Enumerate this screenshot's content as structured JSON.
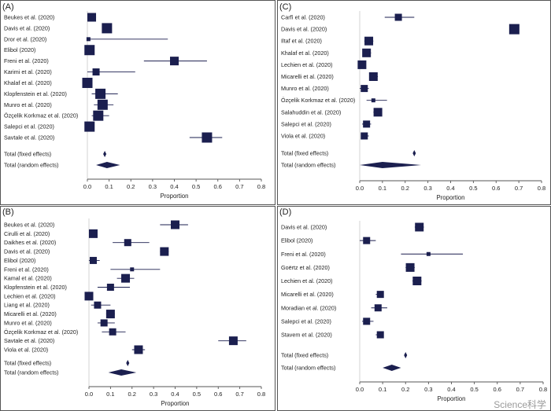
{
  "colors": {
    "marker": "#1b1f4f",
    "axis": "#555555",
    "zero_line": "#c8c8c8",
    "text": "#222222"
  },
  "watermark": "Science科学",
  "chart_data": [
    {
      "type": "forest",
      "panel": "(A)",
      "xlabel": "Proportion",
      "xlim": [
        0,
        0.8
      ],
      "xticks": [
        "0.0",
        "0.1",
        "0.2",
        "0.3",
        "0.4",
        "0.5",
        "0.6",
        "0.7",
        "0.8"
      ],
      "studies": [
        {
          "label": "Beukes et al. (2020)",
          "estimate": 0.02,
          "ci": [
            0.0,
            0.04
          ],
          "weight": "medium"
        },
        {
          "label": "Davis et al. (2020)",
          "estimate": 0.09,
          "ci": [
            0.07,
            0.11
          ],
          "weight": "large"
        },
        {
          "label": "Dror et al. (2020)",
          "estimate": 0.005,
          "ci": [
            0.0,
            0.37
          ],
          "weight": "tiny"
        },
        {
          "label": "Elibol (2020)",
          "estimate": 0.01,
          "ci": [
            0.0,
            0.03
          ],
          "weight": "large"
        },
        {
          "label": "Freni et al. (2020)",
          "estimate": 0.4,
          "ci": [
            0.26,
            0.55
          ],
          "weight": "medium"
        },
        {
          "label": "Karimi et al. (2020)",
          "estimate": 0.04,
          "ci": [
            0.0,
            0.22
          ],
          "weight": "small"
        },
        {
          "label": "Khalaf et al. (2020)",
          "estimate": 0.0,
          "ci": [
            0.0,
            0.01
          ],
          "weight": "large"
        },
        {
          "label": "Klopfenstein et al. (2020)",
          "estimate": 0.06,
          "ci": [
            0.02,
            0.14
          ],
          "weight": "large"
        },
        {
          "label": "Munro et al. (2020)",
          "estimate": 0.07,
          "ci": [
            0.03,
            0.12
          ],
          "weight": "large"
        },
        {
          "label": "Özçelik Korkmaz et al. (2020)",
          "estimate": 0.05,
          "ci": [
            0.02,
            0.1
          ],
          "weight": "large"
        },
        {
          "label": "Salepci et al. (2020)",
          "estimate": 0.01,
          "ci": [
            0.0,
            0.03
          ],
          "weight": "large"
        },
        {
          "label": "Savtale et al. (2020)",
          "estimate": 0.55,
          "ci": [
            0.47,
            0.62
          ],
          "weight": "large"
        }
      ],
      "pooled": [
        {
          "label": "Total (fixed effects)",
          "estimate": 0.08,
          "ci": [
            0.075,
            0.085
          ]
        },
        {
          "label": "Total (random effects)",
          "estimate": 0.09,
          "ci": [
            0.04,
            0.15
          ]
        }
      ]
    },
    {
      "type": "forest",
      "panel": "(B)",
      "xlabel": "Proportion",
      "xlim": [
        0,
        0.8
      ],
      "xticks": [
        "0.0",
        "0.1",
        "0.2",
        "0.3",
        "0.4",
        "0.5",
        "0.6",
        "0.7",
        "0.8"
      ],
      "studies": [
        {
          "label": "Beukes et al. (2020)",
          "estimate": 0.4,
          "ci": [
            0.33,
            0.46
          ],
          "weight": "medium"
        },
        {
          "label": "Cirulli et al. (2020)",
          "estimate": 0.02,
          "ci": [
            0.01,
            0.03
          ],
          "weight": "medium"
        },
        {
          "label": "Daikhes et al. (2020)",
          "estimate": 0.18,
          "ci": [
            0.11,
            0.28
          ],
          "weight": "small"
        },
        {
          "label": "Davis et al. (2020)",
          "estimate": 0.35,
          "ci": [
            0.33,
            0.37
          ],
          "weight": "medium"
        },
        {
          "label": "Elibol (2020)",
          "estimate": 0.02,
          "ci": [
            0.0,
            0.05
          ],
          "weight": "small"
        },
        {
          "label": "Freni et al. (2020)",
          "estimate": 0.2,
          "ci": [
            0.1,
            0.33
          ],
          "weight": "tiny"
        },
        {
          "label": "Kamal et al. (2020)",
          "estimate": 0.17,
          "ci": [
            0.13,
            0.21
          ],
          "weight": "medium"
        },
        {
          "label": "Klopfenstein et al. (2020)",
          "estimate": 0.1,
          "ci": [
            0.04,
            0.19
          ],
          "weight": "small"
        },
        {
          "label": "Lechien et al. (2020)",
          "estimate": 0.0,
          "ci": [
            0.0,
            0.01
          ],
          "weight": "medium"
        },
        {
          "label": "Liang et al. (2020)",
          "estimate": 0.04,
          "ci": [
            0.01,
            0.1
          ],
          "weight": "small"
        },
        {
          "label": "Micarelli et al. (2020)",
          "estimate": 0.1,
          "ci": [
            0.08,
            0.12
          ],
          "weight": "medium"
        },
        {
          "label": "Munro et al. (2020)",
          "estimate": 0.07,
          "ci": [
            0.04,
            0.12
          ],
          "weight": "small"
        },
        {
          "label": "Özçelik Korkmaz et al. (2020)",
          "estimate": 0.11,
          "ci": [
            0.06,
            0.17
          ],
          "weight": "small"
        },
        {
          "label": "Savtale et al. (2020)",
          "estimate": 0.67,
          "ci": [
            0.6,
            0.73
          ],
          "weight": "medium"
        },
        {
          "label": "Viola et al. (2020)",
          "estimate": 0.23,
          "ci": [
            0.2,
            0.26
          ],
          "weight": "medium"
        }
      ],
      "pooled": [
        {
          "label": "Total (fixed effects)",
          "estimate": 0.18,
          "ci": [
            0.175,
            0.185
          ]
        },
        {
          "label": "Total (random effects)",
          "estimate": 0.15,
          "ci": [
            0.09,
            0.22
          ]
        }
      ]
    },
    {
      "type": "forest",
      "panel": "(C)",
      "xlabel": "Proportion",
      "xlim": [
        0,
        0.8
      ],
      "xticks": [
        "0.0",
        "0.1",
        "0.2",
        "0.3",
        "0.4",
        "0.5",
        "0.6",
        "0.7",
        "0.8"
      ],
      "studies": [
        {
          "label": "Carfì et al. (2020)",
          "estimate": 0.17,
          "ci": [
            0.11,
            0.24
          ],
          "weight": "small"
        },
        {
          "label": "Davis et al. (2020)",
          "estimate": 0.68,
          "ci": [
            0.66,
            0.7
          ],
          "weight": "large"
        },
        {
          "label": "Iltaf et al. (2020)",
          "estimate": 0.04,
          "ci": [
            0.02,
            0.06
          ],
          "weight": "medium"
        },
        {
          "label": "Khalaf et al. (2020)",
          "estimate": 0.03,
          "ci": [
            0.02,
            0.05
          ],
          "weight": "medium"
        },
        {
          "label": "Lechien et al. (2020)",
          "estimate": 0.01,
          "ci": [
            0.0,
            0.02
          ],
          "weight": "medium"
        },
        {
          "label": "Micarelli et al. (2020)",
          "estimate": 0.06,
          "ci": [
            0.05,
            0.08
          ],
          "weight": "medium"
        },
        {
          "label": "Munro et al. (2020)",
          "estimate": 0.02,
          "ci": [
            0.0,
            0.04
          ],
          "weight": "small"
        },
        {
          "label": "Özçelik Korkmaz et al. (2020)",
          "estimate": 0.06,
          "ci": [
            0.03,
            0.12
          ],
          "weight": "tiny"
        },
        {
          "label": "Salahuddin et al. (2020)",
          "estimate": 0.08,
          "ci": [
            0.06,
            0.09
          ],
          "weight": "medium"
        },
        {
          "label": "Salepci et al. (2020)",
          "estimate": 0.03,
          "ci": [
            0.01,
            0.05
          ],
          "weight": "small"
        },
        {
          "label": "Viola et al. (2020)",
          "estimate": 0.02,
          "ci": [
            0.01,
            0.04
          ],
          "weight": "small"
        }
      ],
      "pooled": [
        {
          "label": "Total (fixed effects)",
          "estimate": 0.24,
          "ci": [
            0.235,
            0.245
          ]
        },
        {
          "label": "Total (random effects)",
          "estimate": 0.1,
          "ci": [
            0.0,
            0.27
          ]
        }
      ]
    },
    {
      "type": "forest",
      "panel": "(D)",
      "xlabel": "Proportion",
      "xlim": [
        0,
        0.8
      ],
      "xticks": [
        "0.0",
        "0.1",
        "0.2",
        "0.3",
        "0.4",
        "0.5",
        "0.6",
        "0.7",
        "0.8"
      ],
      "studies": [
        {
          "label": "Davis et al. (2020)",
          "estimate": 0.26,
          "ci": [
            0.24,
            0.28
          ],
          "weight": "medium"
        },
        {
          "label": "Elibol (2020)",
          "estimate": 0.03,
          "ci": [
            0.0,
            0.07
          ],
          "weight": "small"
        },
        {
          "label": "Freni et al. (2020)",
          "estimate": 0.3,
          "ci": [
            0.18,
            0.45
          ],
          "weight": "tiny"
        },
        {
          "label": "Goërtz et al. (2020)",
          "estimate": 0.22,
          "ci": [
            0.2,
            0.24
          ],
          "weight": "medium"
        },
        {
          "label": "Lechien et al. (2020)",
          "estimate": 0.25,
          "ci": [
            0.23,
            0.27
          ],
          "weight": "medium"
        },
        {
          "label": "Micarelli et al. (2020)",
          "estimate": 0.09,
          "ci": [
            0.07,
            0.1
          ],
          "weight": "small"
        },
        {
          "label": "Moradian et al. (2020)",
          "estimate": 0.08,
          "ci": [
            0.05,
            0.12
          ],
          "weight": "small"
        },
        {
          "label": "Salepci et al. (2020)",
          "estimate": 0.03,
          "ci": [
            0.01,
            0.06
          ],
          "weight": "small"
        },
        {
          "label": "Stavem et al. (2020)",
          "estimate": 0.09,
          "ci": [
            0.07,
            0.1
          ],
          "weight": "small"
        }
      ],
      "pooled": [
        {
          "label": "Total (fixed effects)",
          "estimate": 0.2,
          "ci": [
            0.195,
            0.205
          ]
        },
        {
          "label": "Total (random effects)",
          "estimate": 0.14,
          "ci": [
            0.1,
            0.18
          ]
        }
      ]
    }
  ]
}
